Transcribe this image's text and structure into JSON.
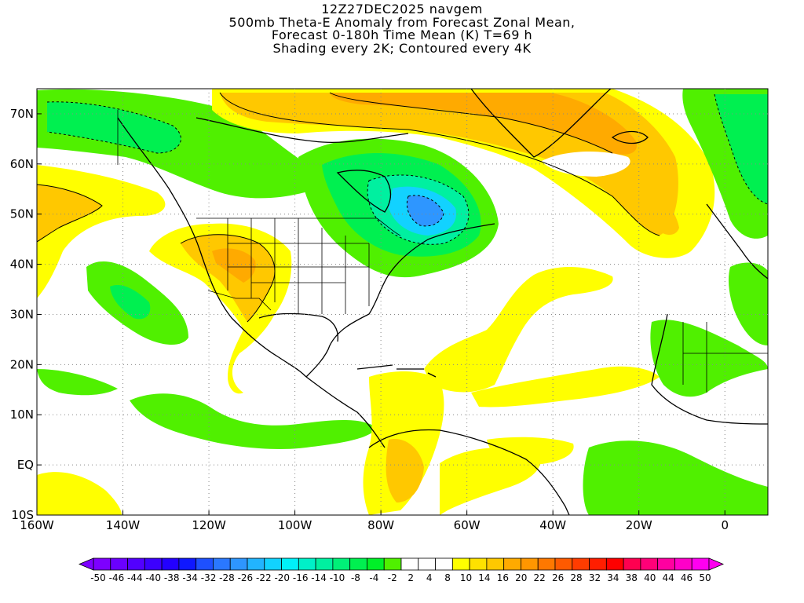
{
  "title": {
    "line1": "12Z27DEC2025 navgem",
    "line2": "500mb Theta-E Anomaly from Forecast Zonal Mean,",
    "line3": "Forecast 0-180h Time Mean (K) T=69 h",
    "line4": "Shading every 2K; Contoured every 4K"
  },
  "axes": {
    "lon_range": [
      -160,
      10
    ],
    "lat_range": [
      -10,
      75
    ],
    "lon_ticks": [
      "160W",
      "140W",
      "120W",
      "100W",
      "80W",
      "60W",
      "40W",
      "20W",
      "0"
    ],
    "lat_ticks": [
      "10S",
      "EQ",
      "10N",
      "20N",
      "30N",
      "40N",
      "50N",
      "60N",
      "70N"
    ]
  },
  "colorbar": {
    "labels": [
      "-50",
      "-46",
      "-44",
      "-40",
      "-38",
      "-34",
      "-32",
      "-28",
      "-26",
      "-22",
      "-20",
      "-16",
      "-14",
      "-10",
      "-8",
      "-4",
      "-2",
      "2",
      "4",
      "8",
      "10",
      "14",
      "16",
      "20",
      "22",
      "26",
      "28",
      "32",
      "34",
      "38",
      "40",
      "44",
      "46",
      "50"
    ],
    "colors": [
      "#7d00ff",
      "#6a00ff",
      "#5200ff",
      "#3c00ff",
      "#2300ff",
      "#0f18ff",
      "#1e50ff",
      "#2a78ff",
      "#2e96ff",
      "#22b4ff",
      "#12d2ff",
      "#00f0f8",
      "#00f0c8",
      "#00f0a0",
      "#00f078",
      "#00f050",
      "#00f028",
      "#50f000",
      "#ffffff",
      "#ffffff",
      "#ffffff",
      "#ffff00",
      "#ffe100",
      "#ffc800",
      "#ffaa00",
      "#ff9600",
      "#ff7800",
      "#ff5a00",
      "#ff3c00",
      "#ff1e00",
      "#ff0000",
      "#ff0050",
      "#ff0078",
      "#ff00a0",
      "#ff00c8",
      "#ff00f0"
    ]
  },
  "colors": {
    "positive_2_4": "#ffff00",
    "positive_4_6": "#ffe600",
    "positive_6_8": "#ffc800",
    "positive_8_10": "#ffaa00",
    "negative_2_4": "#50f000",
    "negative_4_6": "#00f050",
    "negative_6_8": "#00f0a0",
    "negative_8_10": "#00f0c8",
    "negative_10_12": "#12d2ff",
    "negative_12_14": "#2e96ff"
  }
}
